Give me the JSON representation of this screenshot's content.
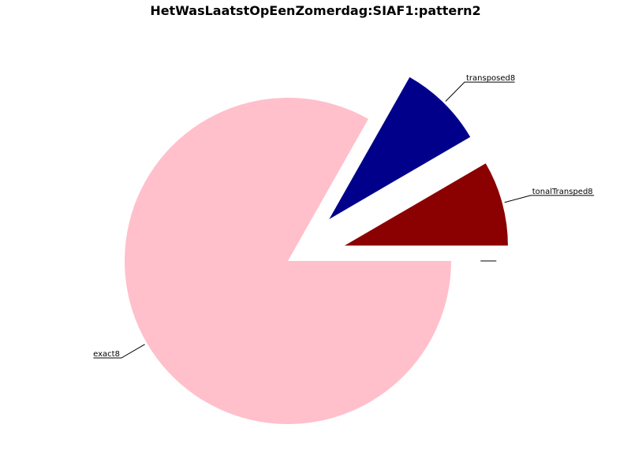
{
  "chart_data": {
    "type": "pie",
    "title": "HetWasLaatstOpEenZomerdag:SIAF1:pattern2",
    "slices": [
      {
        "label": "",
        "value": 0,
        "color": "#ffffff",
        "exploded": false
      },
      {
        "label": "tonalTransped8",
        "value": 8.4,
        "color": "#8b0000",
        "exploded": true
      },
      {
        "label": "transposed8",
        "value": 8.4,
        "color": "#00008b",
        "exploded": true
      },
      {
        "label": "exact8",
        "value": 83.2,
        "color": "#ffc0cb",
        "exploded": false
      }
    ],
    "legend": "none"
  }
}
